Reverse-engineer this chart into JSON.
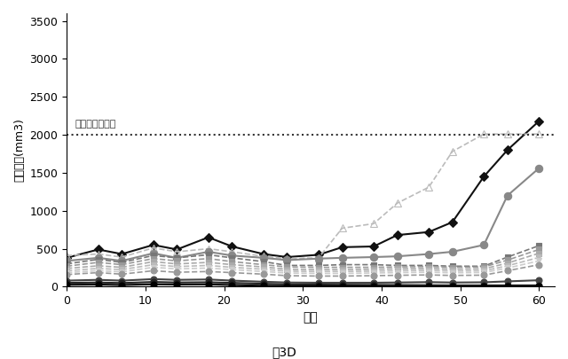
{
  "title": "図3D",
  "ylabel": "腫瘍体積(mm3)",
  "xlabel": "日数",
  "endpoint_label": "エンドポイント",
  "endpoint_y": 2000,
  "xlim": [
    0,
    62
  ],
  "ylim": [
    0,
    3600
  ],
  "yticks": [
    0,
    500,
    1000,
    1500,
    2000,
    2500,
    3000,
    3500
  ],
  "xticks": [
    0,
    10,
    20,
    30,
    40,
    50,
    60
  ],
  "lines": [
    {
      "x": [
        0,
        4,
        7,
        11,
        14,
        18,
        21,
        25,
        28,
        32,
        35,
        39,
        42,
        46,
        49,
        53,
        56,
        60
      ],
      "y": [
        380,
        490,
        430,
        550,
        490,
        650,
        530,
        430,
        390,
        420,
        520,
        530,
        680,
        720,
        850,
        1450,
        1800,
        2180
      ],
      "color": "#111111",
      "linestyle": "-",
      "marker": "D",
      "markersize": 5,
      "linewidth": 1.5
    },
    {
      "x": [
        0,
        4,
        7,
        11,
        14,
        18,
        21,
        25,
        28,
        32,
        35,
        39,
        42,
        46,
        49,
        53,
        56,
        60
      ],
      "y": [
        410,
        430,
        390,
        510,
        460,
        500,
        460,
        400,
        370,
        380,
        770,
        830,
        1100,
        1310,
        1780,
        2010,
        2010,
        2010
      ],
      "color": "#bbbbbb",
      "linestyle": "--",
      "marker": "^",
      "markersize": 6,
      "linewidth": 1.2,
      "open_marker": true
    },
    {
      "x": [
        0,
        4,
        7,
        11,
        14,
        18,
        21,
        25,
        28,
        32,
        35,
        39,
        42,
        46,
        49,
        53,
        56,
        60
      ],
      "y": [
        340,
        380,
        340,
        440,
        380,
        460,
        410,
        380,
        350,
        370,
        380,
        390,
        400,
        430,
        460,
        550,
        1200,
        1560
      ],
      "color": "#888888",
      "linestyle": "-",
      "marker": "o",
      "markersize": 6,
      "linewidth": 1.5
    },
    {
      "x": [
        0,
        4,
        7,
        11,
        14,
        18,
        21,
        25,
        28,
        32,
        35,
        39,
        42,
        46,
        49,
        53,
        56,
        60
      ],
      "y": [
        300,
        360,
        320,
        410,
        380,
        420,
        380,
        330,
        280,
        280,
        290,
        290,
        280,
        280,
        270,
        270,
        390,
        540
      ],
      "color": "#777777",
      "linestyle": "--",
      "marker": "s",
      "markersize": 5,
      "linewidth": 1.2
    },
    {
      "x": [
        0,
        4,
        7,
        11,
        14,
        18,
        21,
        25,
        28,
        32,
        35,
        39,
        42,
        46,
        49,
        53,
        56,
        60
      ],
      "y": [
        270,
        320,
        290,
        370,
        340,
        370,
        330,
        290,
        260,
        255,
        255,
        255,
        260,
        265,
        255,
        260,
        350,
        490
      ],
      "color": "#999999",
      "linestyle": "--",
      "marker": "s",
      "markersize": 5,
      "linewidth": 1.2
    },
    {
      "x": [
        0,
        4,
        7,
        11,
        14,
        18,
        21,
        25,
        28,
        32,
        35,
        39,
        42,
        46,
        49,
        53,
        56,
        60
      ],
      "y": [
        240,
        275,
        255,
        330,
        300,
        320,
        290,
        260,
        230,
        225,
        225,
        230,
        235,
        240,
        230,
        235,
        310,
        440
      ],
      "color": "#aaaaaa",
      "linestyle": "--",
      "marker": "s",
      "markersize": 5,
      "linewidth": 1.2
    },
    {
      "x": [
        0,
        4,
        7,
        11,
        14,
        18,
        21,
        25,
        28,
        32,
        35,
        39,
        42,
        46,
        49,
        53,
        56,
        60
      ],
      "y": [
        210,
        240,
        225,
        290,
        265,
        280,
        255,
        230,
        205,
        200,
        200,
        205,
        210,
        215,
        207,
        210,
        275,
        385
      ],
      "color": "#bbbbbb",
      "linestyle": "--",
      "marker": "v",
      "markersize": 5,
      "linewidth": 1.2
    },
    {
      "x": [
        0,
        4,
        7,
        11,
        14,
        18,
        21,
        25,
        28,
        32,
        35,
        39,
        42,
        46,
        49,
        53,
        56,
        60
      ],
      "y": [
        185,
        210,
        195,
        255,
        235,
        245,
        225,
        200,
        180,
        175,
        175,
        180,
        185,
        190,
        183,
        187,
        245,
        340
      ],
      "color": "#cccccc",
      "linestyle": "--",
      "marker": "v",
      "markersize": 5,
      "linewidth": 1.2
    },
    {
      "x": [
        0,
        4,
        7,
        11,
        14,
        18,
        21,
        25,
        28,
        32,
        35,
        39,
        42,
        46,
        49,
        53,
        56,
        60
      ],
      "y": [
        160,
        185,
        165,
        210,
        190,
        200,
        185,
        165,
        145,
        140,
        140,
        145,
        150,
        155,
        148,
        152,
        210,
        290
      ],
      "color": "#999999",
      "linestyle": "--",
      "marker": "o",
      "markersize": 5,
      "linewidth": 1.2
    },
    {
      "x": [
        0,
        4,
        7,
        11,
        14,
        18,
        21,
        25,
        28,
        32,
        35,
        39,
        42,
        46,
        49,
        53,
        56,
        60
      ],
      "y": [
        80,
        90,
        80,
        100,
        90,
        95,
        80,
        65,
        55,
        52,
        52,
        52,
        55,
        60,
        55,
        58,
        70,
        85
      ],
      "color": "#444444",
      "linestyle": "-",
      "marker": "o",
      "markersize": 5,
      "linewidth": 1.5
    },
    {
      "x": [
        0,
        4,
        7,
        11,
        14,
        18,
        21,
        25,
        28,
        32,
        35,
        39,
        42,
        46,
        49,
        53,
        56,
        60
      ],
      "y": [
        50,
        55,
        48,
        62,
        55,
        58,
        50,
        38,
        30,
        28,
        26,
        24,
        22,
        20,
        18,
        18,
        18,
        18
      ],
      "color": "#222222",
      "linestyle": "-",
      "marker": "o",
      "markersize": 5,
      "linewidth": 1.5
    },
    {
      "x": [
        0,
        4,
        7,
        11,
        14,
        18,
        21,
        25,
        28,
        32,
        35,
        39,
        42,
        46,
        49,
        53,
        56,
        60
      ],
      "y": [
        25,
        28,
        22,
        32,
        28,
        30,
        22,
        12,
        8,
        6,
        5,
        4,
        3,
        3,
        3,
        3,
        3,
        3
      ],
      "color": "#000000",
      "linestyle": "-",
      "marker": "o",
      "markersize": 5,
      "linewidth": 1.5
    }
  ]
}
